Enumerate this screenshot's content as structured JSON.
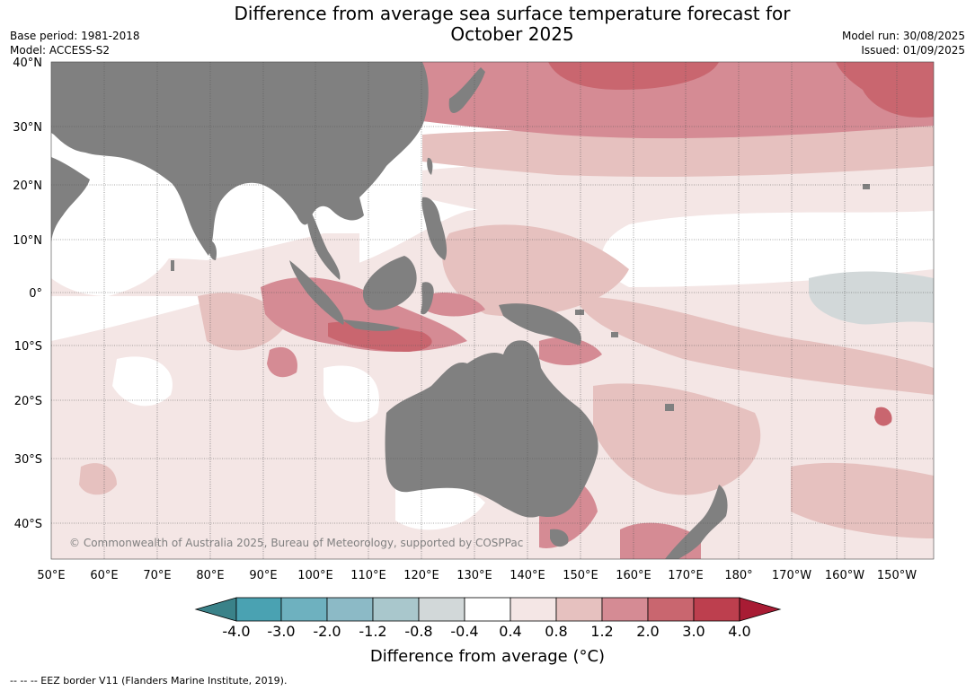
{
  "title": {
    "line1": "Difference from average sea surface temperature forecast for",
    "line2": "October 2025"
  },
  "meta_left": [
    "Base period: 1981-2018",
    "Model: ACCESS-S2"
  ],
  "meta_right": [
    "Model run: 30/08/2025",
    "Issued: 01/09/2025"
  ],
  "lat_labels": [
    "40°N",
    "30°N",
    "20°N",
    "10°N",
    "0°",
    "10°S",
    "20°S",
    "30°S",
    "40°S"
  ],
  "lon_labels": [
    "50°E",
    "60°E",
    "70°E",
    "80°E",
    "90°E",
    "100°E",
    "110°E",
    "120°E",
    "130°E",
    "140°E",
    "150°E",
    "160°E",
    "170°E",
    "180°",
    "170°W",
    "160°W",
    "150°W"
  ],
  "copyright": "© Commonwealth of Australia 2025, Bureau of Meteorology, supported by COSPPac",
  "colorbar": {
    "ticks": [
      "-4.0",
      "-3.0",
      "-2.0",
      "-1.2",
      "-0.8",
      "-0.4",
      "0.4",
      "0.8",
      "1.2",
      "2.0",
      "3.0",
      "4.0"
    ],
    "colors": [
      "#3a8289",
      "#4aa2b2",
      "#6eb1bf",
      "#8cbac6",
      "#a9c7cc",
      "#d2d8d9",
      "#ffffff",
      "#f4e6e5",
      "#e6c1bf",
      "#d58b94",
      "#c9666f",
      "#bd3f4e",
      "#a81c34"
    ],
    "label": "Difference from average (°C)"
  },
  "footnote": "--  --  -- EEZ border V11 (Flanders Marine Institute, 2019).",
  "map_colors": {
    "land": "#808080",
    "ocean_neutral": "#ffffff",
    "warm_0_4": "#f4e6e5",
    "warm_0_8": "#e6c1bf",
    "warm_1_2": "#d58b94",
    "warm_2_0": "#c9666f",
    "cool": "#d2d8d9"
  }
}
